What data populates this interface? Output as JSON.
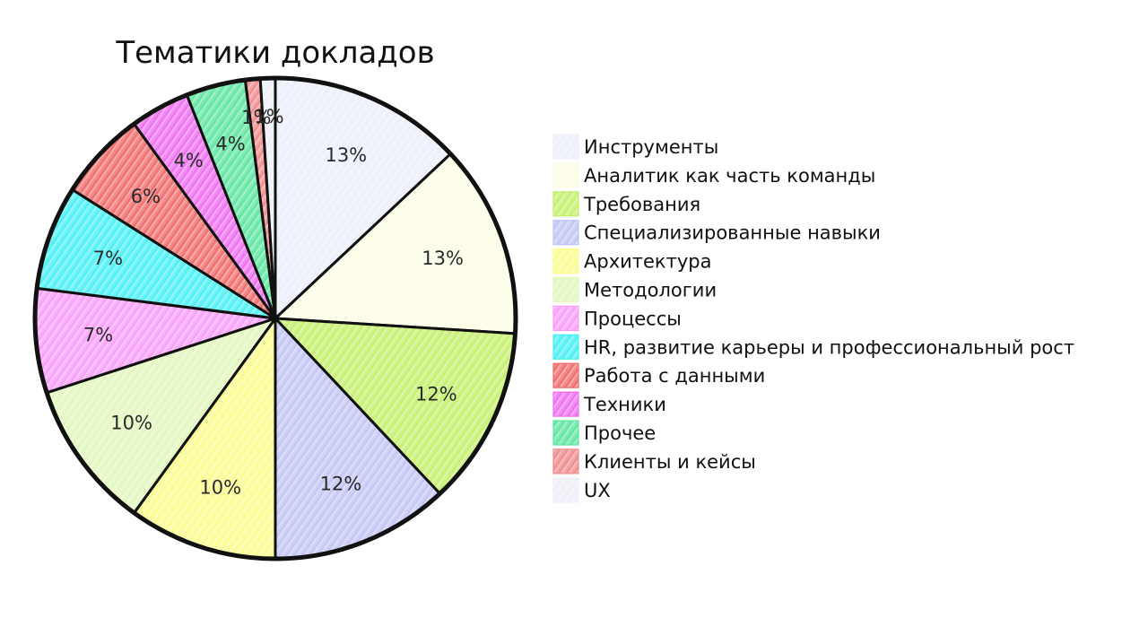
{
  "chart_data": {
    "type": "pie",
    "title": "Тематики докладов",
    "legend_position": "right",
    "start_angle_deg": 0,
    "direction": "clockwise",
    "slices": [
      {
        "name": "Инструменты",
        "value": 13,
        "label": "13%",
        "color": "#eceefa"
      },
      {
        "name": "Аналитик как часть команды",
        "value": 13,
        "label": "13%",
        "color": "#fdfde6"
      },
      {
        "name": "Требования",
        "value": 12,
        "label": "12%",
        "color": "#c4f06a"
      },
      {
        "name": "Специализированные навыки",
        "value": 12,
        "label": "12%",
        "color": "#c2c4f4"
      },
      {
        "name": "Архитектура",
        "value": 10,
        "label": "10%",
        "color": "#fafc8c"
      },
      {
        "name": "Методологии",
        "value": 10,
        "label": "10%",
        "color": "#e2f7bd"
      },
      {
        "name": "Процессы",
        "value": 7,
        "label": "7%",
        "color": "#f99cf9"
      },
      {
        "name": "HR, развитие карьеры и профессиональный рост",
        "value": 7,
        "label": "7%",
        "color": "#46f0f3"
      },
      {
        "name": "Работа с данными",
        "value": 6,
        "label": "6%",
        "color": "#f06a6a"
      },
      {
        "name": "Техники",
        "value": 4,
        "label": "4%",
        "color": "#ee6ef0"
      },
      {
        "name": "Прочее",
        "value": 4,
        "label": "4%",
        "color": "#5ee6a0"
      },
      {
        "name": "Клиенты и кейсы",
        "value": 1,
        "label": "1%",
        "color": "#f08a8a"
      },
      {
        "name": "UX",
        "value": 1,
        "label": "1%",
        "color": "#eeeef8"
      }
    ]
  }
}
